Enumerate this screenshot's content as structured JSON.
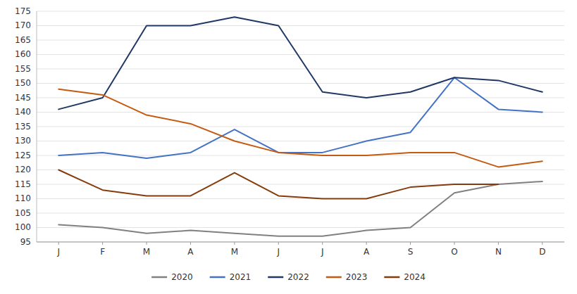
{
  "chart_data": {
    "type": "line",
    "categories": [
      "J",
      "F",
      "M",
      "A",
      "M",
      "J",
      "J",
      "A",
      "S",
      "O",
      "N",
      "D"
    ],
    "series": [
      {
        "name": "2020",
        "color": "#808080",
        "values": [
          101,
          100,
          98,
          99,
          98,
          97,
          97,
          99,
          100,
          112,
          115,
          116
        ]
      },
      {
        "name": "2021",
        "color": "#4472C4",
        "values": [
          125,
          126,
          124,
          126,
          134,
          126,
          126,
          130,
          133,
          152,
          141,
          140
        ]
      },
      {
        "name": "2022",
        "color": "#203864",
        "values": [
          141,
          145,
          170,
          170,
          173,
          170,
          147,
          145,
          147,
          152,
          151,
          147
        ]
      },
      {
        "name": "2023",
        "color": "#C55A11",
        "values": [
          148,
          146,
          139,
          136,
          130,
          126,
          125,
          125,
          126,
          126,
          121,
          123
        ]
      },
      {
        "name": "2024",
        "color": "#843C0C",
        "values": [
          120,
          113,
          111,
          111,
          119,
          111,
          110,
          110,
          114,
          115,
          115,
          null
        ]
      }
    ],
    "ylim": [
      95,
      175
    ],
    "yticks": [
      95,
      100,
      105,
      110,
      115,
      120,
      125,
      130,
      135,
      140,
      145,
      150,
      155,
      160,
      165,
      170,
      175
    ],
    "grid": true,
    "legend": "bottom"
  }
}
